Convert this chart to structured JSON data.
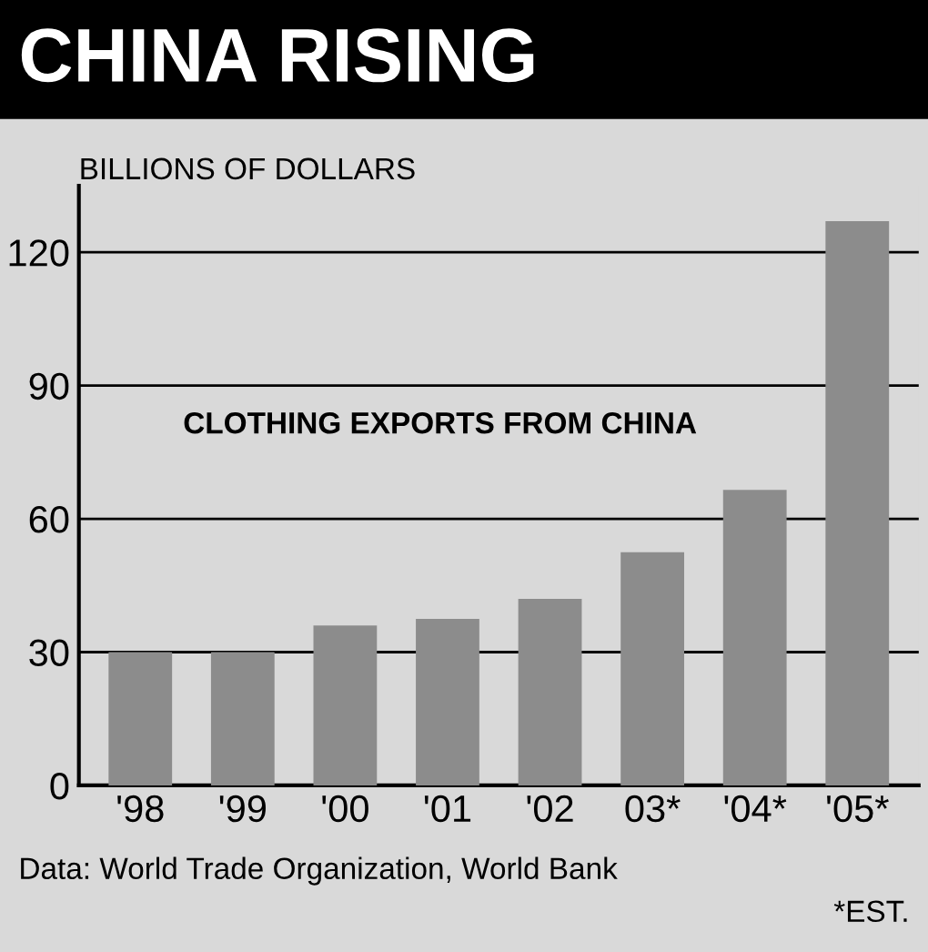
{
  "chart_data": {
    "type": "bar",
    "title": "CHINA RISING",
    "ylabel": "BILLIONS OF DOLLARS",
    "subtitle": "CLOTHING EXPORTS FROM CHINA",
    "categories": [
      "'98",
      "'99",
      "'00",
      "'01",
      "'02",
      "03*",
      "'04*",
      "'05*"
    ],
    "values": [
      30,
      30,
      36,
      37.5,
      42,
      52.5,
      66.5,
      127
    ],
    "color": "#8c8c8c",
    "ylim": [
      0,
      135
    ],
    "yticks": [
      0,
      30,
      60,
      90,
      120
    ],
    "grid": "y",
    "legend": false,
    "annotations": [
      "Data: World Trade Organization, World Bank",
      "*EST."
    ]
  }
}
